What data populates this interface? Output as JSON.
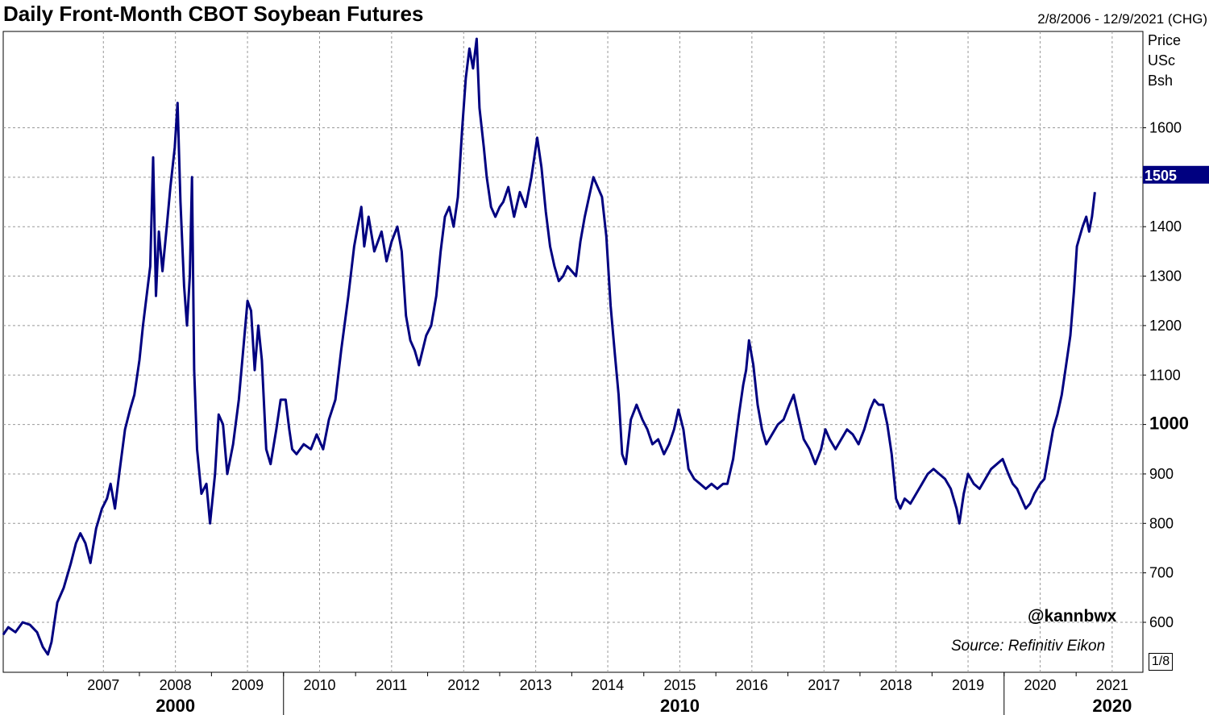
{
  "header": {
    "title": "Daily Front-Month CBOT Soybean Futures",
    "date_range": "2/8/2006 - 12/9/2021 (CHG)"
  },
  "axis_unit": [
    "Price",
    "USc",
    "Bsh"
  ],
  "watermark": {
    "handle": "@kannbwx",
    "source": "Source: Refinitiv Eikon"
  },
  "pager": "1/8",
  "colors": {
    "line": "#000080",
    "grid": "#999999",
    "label_bg": "#000080"
  },
  "chart_data": {
    "type": "line",
    "title": "Daily Front-Month CBOT Soybean Futures",
    "x_range": [
      "2006-02-08",
      "2021-12-09"
    ],
    "ylim": [
      520,
      1810
    ],
    "y_ticks": [
      600,
      700,
      800,
      900,
      1000,
      1100,
      1200,
      1300,
      1400,
      1500,
      1600
    ],
    "y_tick_labels": [
      "600",
      "700",
      "800",
      "900",
      "1000",
      "1100",
      "1200",
      "1300",
      "1400",
      "",
      "1600"
    ],
    "x_ticks": [
      2007,
      2008,
      2009,
      2010,
      2011,
      2012,
      2013,
      2014,
      2015,
      2016,
      2017,
      2018,
      2019,
      2020,
      2021
    ],
    "decade_labels": [
      {
        "label": "2000",
        "year": 2008.0
      },
      {
        "label": "2010",
        "year": 2015.0
      },
      {
        "label": "2020",
        "year": 2021.0
      }
    ],
    "decade_dividers": [
      2010,
      2020
    ],
    "last_value_label": "1505",
    "last_value": 1505,
    "grid": true,
    "series": [
      {
        "values": [
          [
            2006.11,
            575
          ],
          [
            2006.18,
            590
          ],
          [
            2006.28,
            580
          ],
          [
            2006.38,
            600
          ],
          [
            2006.48,
            595
          ],
          [
            2006.58,
            580
          ],
          [
            2006.66,
            550
          ],
          [
            2006.73,
            535
          ],
          [
            2006.78,
            560
          ],
          [
            2006.86,
            640
          ],
          [
            2006.95,
            670
          ],
          [
            2007.05,
            720
          ],
          [
            2007.12,
            760
          ],
          [
            2007.18,
            780
          ],
          [
            2007.25,
            760
          ],
          [
            2007.32,
            720
          ],
          [
            2007.4,
            790
          ],
          [
            2007.48,
            830
          ],
          [
            2007.55,
            850
          ],
          [
            2007.6,
            880
          ],
          [
            2007.66,
            830
          ],
          [
            2007.72,
            900
          ],
          [
            2007.8,
            990
          ],
          [
            2007.87,
            1030
          ],
          [
            2007.93,
            1060
          ],
          [
            2008.0,
            1130
          ],
          [
            2008.05,
            1200
          ],
          [
            2008.1,
            1260
          ],
          [
            2008.15,
            1320
          ],
          [
            2008.19,
            1540
          ],
          [
            2008.23,
            1260
          ],
          [
            2008.27,
            1390
          ],
          [
            2008.32,
            1310
          ],
          [
            2008.38,
            1400
          ],
          [
            2008.43,
            1480
          ],
          [
            2008.49,
            1560
          ],
          [
            2008.53,
            1650
          ],
          [
            2008.57,
            1450
          ],
          [
            2008.62,
            1280
          ],
          [
            2008.66,
            1200
          ],
          [
            2008.7,
            1300
          ],
          [
            2008.73,
            1500
          ],
          [
            2008.76,
            1110
          ],
          [
            2008.8,
            950
          ],
          [
            2008.86,
            860
          ],
          [
            2008.93,
            880
          ],
          [
            2008.98,
            800
          ],
          [
            2009.05,
            900
          ],
          [
            2009.1,
            1020
          ],
          [
            2009.16,
            1000
          ],
          [
            2009.22,
            900
          ],
          [
            2009.3,
            960
          ],
          [
            2009.38,
            1050
          ],
          [
            2009.44,
            1150
          ],
          [
            2009.5,
            1250
          ],
          [
            2009.55,
            1230
          ],
          [
            2009.6,
            1110
          ],
          [
            2009.65,
            1200
          ],
          [
            2009.7,
            1130
          ],
          [
            2009.76,
            950
          ],
          [
            2009.82,
            920
          ],
          [
            2009.9,
            990
          ],
          [
            2009.96,
            1050
          ],
          [
            2010.03,
            1050
          ],
          [
            2010.08,
            990
          ],
          [
            2010.12,
            950
          ],
          [
            2010.18,
            940
          ],
          [
            2010.28,
            960
          ],
          [
            2010.38,
            950
          ],
          [
            2010.46,
            980
          ],
          [
            2010.55,
            950
          ],
          [
            2010.63,
            1010
          ],
          [
            2010.72,
            1050
          ],
          [
            2010.8,
            1150
          ],
          [
            2010.9,
            1260
          ],
          [
            2010.98,
            1360
          ],
          [
            2011.03,
            1400
          ],
          [
            2011.08,
            1440
          ],
          [
            2011.12,
            1360
          ],
          [
            2011.18,
            1420
          ],
          [
            2011.26,
            1350
          ],
          [
            2011.36,
            1390
          ],
          [
            2011.43,
            1330
          ],
          [
            2011.5,
            1370
          ],
          [
            2011.58,
            1400
          ],
          [
            2011.64,
            1350
          ],
          [
            2011.7,
            1220
          ],
          [
            2011.76,
            1170
          ],
          [
            2011.82,
            1150
          ],
          [
            2011.88,
            1120
          ],
          [
            2011.93,
            1150
          ],
          [
            2011.98,
            1180
          ],
          [
            2012.05,
            1200
          ],
          [
            2012.12,
            1260
          ],
          [
            2012.18,
            1350
          ],
          [
            2012.24,
            1420
          ],
          [
            2012.3,
            1440
          ],
          [
            2012.36,
            1400
          ],
          [
            2012.42,
            1460
          ],
          [
            2012.48,
            1600
          ],
          [
            2012.53,
            1700
          ],
          [
            2012.58,
            1760
          ],
          [
            2012.63,
            1720
          ],
          [
            2012.68,
            1780
          ],
          [
            2012.72,
            1640
          ],
          [
            2012.78,
            1560
          ],
          [
            2012.82,
            1500
          ],
          [
            2012.88,
            1440
          ],
          [
            2012.94,
            1420
          ],
          [
            2013.0,
            1440
          ],
          [
            2013.05,
            1450
          ],
          [
            2013.12,
            1480
          ],
          [
            2013.2,
            1420
          ],
          [
            2013.28,
            1470
          ],
          [
            2013.36,
            1440
          ],
          [
            2013.44,
            1500
          ],
          [
            2013.52,
            1580
          ],
          [
            2013.58,
            1520
          ],
          [
            2013.64,
            1430
          ],
          [
            2013.7,
            1360
          ],
          [
            2013.76,
            1320
          ],
          [
            2013.82,
            1290
          ],
          [
            2013.88,
            1300
          ],
          [
            2013.94,
            1320
          ],
          [
            2014.0,
            1310
          ],
          [
            2014.06,
            1300
          ],
          [
            2014.12,
            1370
          ],
          [
            2014.18,
            1420
          ],
          [
            2014.24,
            1460
          ],
          [
            2014.3,
            1500
          ],
          [
            2014.36,
            1480
          ],
          [
            2014.42,
            1460
          ],
          [
            2014.48,
            1380
          ],
          [
            2014.54,
            1240
          ],
          [
            2014.6,
            1140
          ],
          [
            2014.65,
            1060
          ],
          [
            2014.7,
            940
          ],
          [
            2014.75,
            920
          ],
          [
            2014.82,
            1010
          ],
          [
            2014.9,
            1040
          ],
          [
            2014.98,
            1010
          ],
          [
            2015.05,
            990
          ],
          [
            2015.12,
            960
          ],
          [
            2015.2,
            970
          ],
          [
            2015.28,
            940
          ],
          [
            2015.35,
            960
          ],
          [
            2015.42,
            990
          ],
          [
            2015.48,
            1030
          ],
          [
            2015.55,
            990
          ],
          [
            2015.62,
            910
          ],
          [
            2015.7,
            890
          ],
          [
            2015.78,
            880
          ],
          [
            2015.86,
            870
          ],
          [
            2015.94,
            880
          ],
          [
            2016.02,
            870
          ],
          [
            2016.1,
            880
          ],
          [
            2016.16,
            880
          ],
          [
            2016.24,
            930
          ],
          [
            2016.32,
            1020
          ],
          [
            2016.38,
            1080
          ],
          [
            2016.42,
            1110
          ],
          [
            2016.46,
            1170
          ],
          [
            2016.52,
            1120
          ],
          [
            2016.58,
            1040
          ],
          [
            2016.64,
            990
          ],
          [
            2016.7,
            960
          ],
          [
            2016.78,
            980
          ],
          [
            2016.86,
            1000
          ],
          [
            2016.94,
            1010
          ],
          [
            2017.02,
            1040
          ],
          [
            2017.08,
            1060
          ],
          [
            2017.14,
            1020
          ],
          [
            2017.22,
            970
          ],
          [
            2017.3,
            950
          ],
          [
            2017.38,
            920
          ],
          [
            2017.46,
            950
          ],
          [
            2017.52,
            990
          ],
          [
            2017.58,
            970
          ],
          [
            2017.66,
            950
          ],
          [
            2017.74,
            970
          ],
          [
            2017.82,
            990
          ],
          [
            2017.9,
            980
          ],
          [
            2017.98,
            960
          ],
          [
            2018.06,
            990
          ],
          [
            2018.14,
            1030
          ],
          [
            2018.2,
            1050
          ],
          [
            2018.26,
            1040
          ],
          [
            2018.32,
            1040
          ],
          [
            2018.38,
            1000
          ],
          [
            2018.44,
            940
          ],
          [
            2018.5,
            850
          ],
          [
            2018.56,
            830
          ],
          [
            2018.62,
            850
          ],
          [
            2018.7,
            840
          ],
          [
            2018.78,
            860
          ],
          [
            2018.86,
            880
          ],
          [
            2018.94,
            900
          ],
          [
            2019.02,
            910
          ],
          [
            2019.1,
            900
          ],
          [
            2019.18,
            890
          ],
          [
            2019.26,
            870
          ],
          [
            2019.34,
            830
          ],
          [
            2019.38,
            800
          ],
          [
            2019.44,
            860
          ],
          [
            2019.5,
            900
          ],
          [
            2019.58,
            880
          ],
          [
            2019.66,
            870
          ],
          [
            2019.74,
            890
          ],
          [
            2019.82,
            910
          ],
          [
            2019.9,
            920
          ],
          [
            2019.98,
            930
          ],
          [
            2020.06,
            900
          ],
          [
            2020.12,
            880
          ],
          [
            2020.18,
            870
          ],
          [
            2020.24,
            850
          ],
          [
            2020.3,
            830
          ],
          [
            2020.36,
            840
          ],
          [
            2020.42,
            860
          ],
          [
            2020.5,
            880
          ],
          [
            2020.56,
            890
          ],
          [
            2020.62,
            940
          ],
          [
            2020.68,
            990
          ],
          [
            2020.74,
            1020
          ],
          [
            2020.8,
            1060
          ],
          [
            2020.86,
            1120
          ],
          [
            2020.92,
            1180
          ],
          [
            2020.97,
            1270
          ],
          [
            2021.01,
            1360
          ],
          [
            2021.05,
            1380
          ],
          [
            2021.09,
            1400
          ],
          [
            2021.14,
            1420
          ],
          [
            2021.18,
            1390
          ],
          [
            2021.22,
            1420
          ],
          [
            2021.26,
            1470
          ]
        ]
      }
    ]
  }
}
